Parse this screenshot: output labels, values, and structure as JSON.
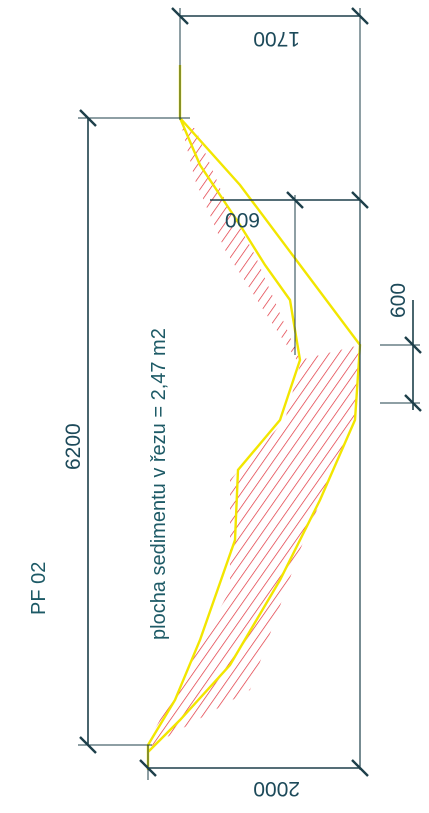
{
  "section": {
    "name": "PF 02",
    "area_label": "plocha sedimentu v řezu = 2,47 m2"
  },
  "dimensions": {
    "length": "6200",
    "top_width": "1700",
    "bottom_width": "2000",
    "mid_offset": "600",
    "side_depth": "600"
  },
  "colors": {
    "outline": "#f2e600",
    "hatch": "#e0303a",
    "dimension_line": "#1d3f4a",
    "text": "#1d5a66"
  }
}
